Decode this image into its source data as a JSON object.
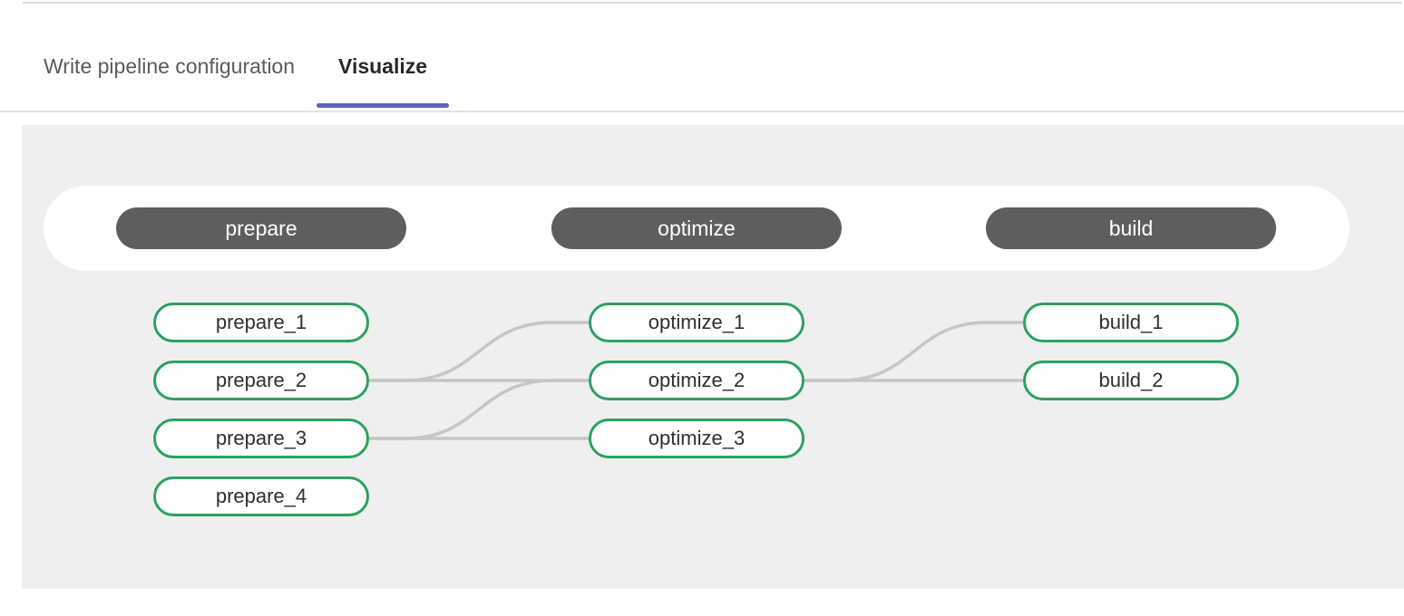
{
  "tabs": {
    "items": [
      {
        "label": "Write pipeline configuration",
        "active": false
      },
      {
        "label": "Visualize",
        "active": true
      }
    ]
  },
  "pipeline": {
    "stages": [
      {
        "name": "prepare",
        "jobs": [
          "prepare_1",
          "prepare_2",
          "prepare_3",
          "prepare_4"
        ]
      },
      {
        "name": "optimize",
        "jobs": [
          "optimize_1",
          "optimize_2",
          "optimize_3"
        ]
      },
      {
        "name": "build",
        "jobs": [
          "build_1",
          "build_2"
        ]
      }
    ],
    "edges": [
      {
        "from": "prepare_2",
        "to": "optimize_1"
      },
      {
        "from": "prepare_2",
        "to": "optimize_2"
      },
      {
        "from": "prepare_3",
        "to": "optimize_2"
      },
      {
        "from": "prepare_3",
        "to": "optimize_3"
      },
      {
        "from": "optimize_2",
        "to": "build_1"
      },
      {
        "from": "optimize_2",
        "to": "build_2"
      }
    ]
  },
  "colors": {
    "accent": "#6161bd",
    "job_border": "#2da160",
    "stage_bg": "#5e5e5e",
    "edge": "#c6c6c6",
    "panel_bg": "#efefef"
  }
}
